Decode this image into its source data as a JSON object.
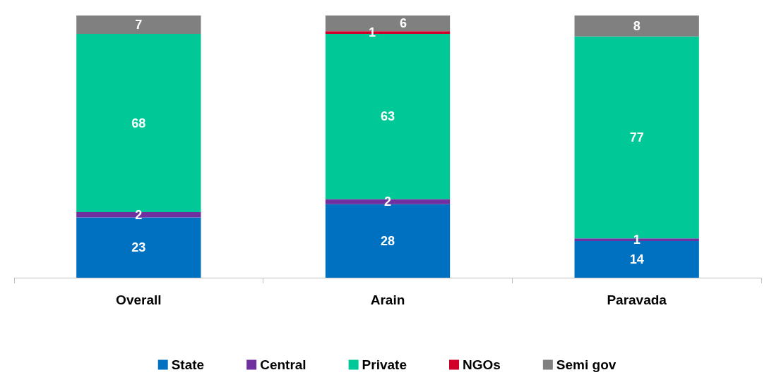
{
  "chart_data": {
    "type": "bar",
    "stacked": true,
    "data_labels": true,
    "legend": "bottom",
    "categories": [
      "Overall",
      "Arain",
      "Paravada"
    ],
    "series": [
      {
        "name": "State",
        "color": "#0070c0",
        "values": [
          23,
          28,
          14
        ]
      },
      {
        "name": "Central",
        "color": "#7030a0",
        "values": [
          2,
          2,
          1
        ]
      },
      {
        "name": "Private",
        "color": "#00c896",
        "values": [
          68,
          63,
          77
        ]
      },
      {
        "name": "NGOs",
        "color": "#d0002a",
        "values": [
          null,
          1,
          null
        ]
      },
      {
        "name": "Semi gov",
        "color": "#808080",
        "values": [
          7,
          6,
          8
        ]
      }
    ]
  }
}
